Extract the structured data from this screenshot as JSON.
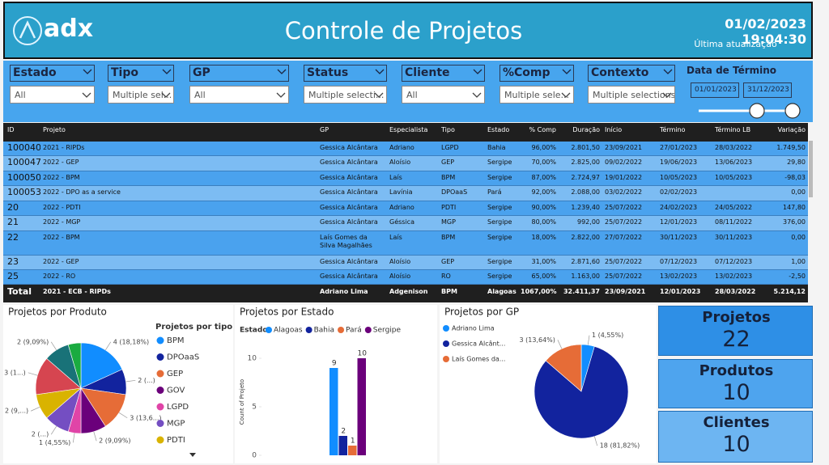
{
  "header": {
    "logo": "adx",
    "title": "Controle de Projetos",
    "updated": "01/02/2023 19:04:30",
    "updated_label": "Última atualização"
  },
  "filters": [
    {
      "label": "Estado",
      "value": "All"
    },
    {
      "label": "Tipo",
      "value": "Multiple sel..."
    },
    {
      "label": "GP",
      "value": "All"
    },
    {
      "label": "Status",
      "value": "Multiple selecti..."
    },
    {
      "label": "Cliente",
      "value": "All"
    },
    {
      "label": "%Comp",
      "value": "Multiple sele..."
    },
    {
      "label": "Contexto",
      "value": "Multiple selections"
    }
  ],
  "date_filter": {
    "label": "Data de Término",
    "start": "01/01/2023",
    "end": "31/12/2023"
  },
  "table": {
    "columns": [
      "ID",
      "Projeto",
      "GP",
      "Especialista",
      "Tipo",
      "Estado",
      "% Comp",
      "Duração",
      "Início",
      "Término",
      "Término LB",
      "Variação"
    ],
    "rows": [
      [
        "100040",
        "2021 - RIPDs",
        "Gessica Alcântara",
        "Adriano",
        "LGPD",
        "Bahia",
        "96,00%",
        "2.801,50",
        "23/09/2021",
        "27/01/2023",
        "28/03/2022",
        "1.749,50"
      ],
      [
        "100047",
        "2022 - GEP",
        "Gessica Alcântara",
        "Aloísio",
        "GEP",
        "Sergipe",
        "70,00%",
        "2.825,00",
        "09/02/2022",
        "19/06/2023",
        "13/06/2023",
        "29,80"
      ],
      [
        "100050",
        "2022 - BPM",
        "Gessica Alcântara",
        "Laís",
        "BPM",
        "Sergipe",
        "87,00%",
        "2.724,97",
        "19/01/2022",
        "10/05/2023",
        "10/05/2023",
        "-98,03"
      ],
      [
        "100053",
        "2022 - DPO as a service",
        "Gessica Alcântara",
        "Lavínia",
        "DPOaaS",
        "Pará",
        "92,00%",
        "2.088,00",
        "03/02/2022",
        "02/02/2023",
        null,
        "0,00"
      ],
      [
        "20",
        "2022 - PDTI",
        "Gessica Alcântara",
        "Adriano",
        "PDTI",
        "Sergipe",
        "90,00%",
        "1.239,40",
        "25/07/2022",
        "24/02/2023",
        "24/05/2022",
        "147,80"
      ],
      [
        "21",
        "2022 - MGP",
        "Gessica Alcântara",
        "Géssica",
        "MGP",
        "Sergipe",
        "80,00%",
        "992,00",
        "25/07/2022",
        "12/01/2023",
        "08/11/2022",
        "376,00"
      ],
      [
        "22",
        "2022 - BPM",
        "Laís Gomes da Silva Magalhães",
        "Laís",
        "BPM",
        "Sergipe",
        "18,00%",
        "2.822,00",
        "27/07/2022",
        "30/11/2023",
        "30/11/2023",
        "0,00"
      ],
      [
        "23",
        "2022 - GEP",
        "Gessica Alcântara",
        "Aloísio",
        "GEP",
        "Sergipe",
        "31,00%",
        "2.871,60",
        "25/07/2022",
        "07/12/2023",
        "07/12/2023",
        "1,00"
      ],
      [
        "25",
        "2022 - RO",
        "Gessica Alcântara",
        "Aloísio",
        "RO",
        "Sergipe",
        "65,00%",
        "1.163,00",
        "25/07/2022",
        "13/02/2023",
        "13/02/2023",
        "-2,50"
      ]
    ],
    "total": [
      "Total",
      "2021 - ECB - RIPDs",
      "Adriano Lima",
      "Adgenison",
      "BPM",
      "Alagoas",
      "1067,00%",
      "32.411,37",
      "23/09/2021",
      "12/01/2023",
      "28/03/2022",
      "5.214,12"
    ]
  },
  "chart_data": [
    {
      "type": "pie",
      "title": "Projetos por Produto",
      "legend_title": "Projetos por tipo",
      "categories": [
        "BPM",
        "DPOaaS",
        "GEP",
        "GOV",
        "LGPD",
        "MGP",
        "PDTI",
        null,
        null,
        null
      ],
      "values": [
        4,
        2,
        3,
        2,
        1,
        2,
        2,
        3,
        2,
        1
      ],
      "value_labels": [
        "4 (18,18%)",
        "2 (...)",
        "3 (13,6...)",
        "2 (9,09%)",
        "1 (4,55%)",
        "2 (...)",
        "2 (9,...)",
        "3 (1...)",
        "2 (9,09%)",
        null
      ],
      "colors": [
        "#118DFF",
        "#12239E",
        "#E66C37",
        "#6B007B",
        "#E044A7",
        "#744EC2",
        "#D9B300",
        "#D64550",
        "#197278",
        "#1AAB40"
      ]
    },
    {
      "type": "bar",
      "title": "Projetos por Estado",
      "legend_title": "Estado",
      "ylabel": "Count of Projeto",
      "series": [
        {
          "name": "Alagoas",
          "color": "#118DFF",
          "values": [
            9
          ]
        },
        {
          "name": "Bahia",
          "color": "#12239E",
          "values": [
            2
          ]
        },
        {
          "name": "Pará",
          "color": "#E66C37",
          "values": [
            1
          ]
        },
        {
          "name": "Sergipe",
          "color": "#6B007B",
          "values": [
            10
          ]
        }
      ],
      "ylim": [
        0,
        11
      ],
      "yticks": [
        0,
        5,
        10
      ]
    },
    {
      "type": "pie",
      "title": "Projetos por GP",
      "categories": [
        "Adriano Lima",
        "Gessica Alcânt...",
        "Laís Gomes da..."
      ],
      "values": [
        1,
        18,
        3
      ],
      "value_labels": [
        "1 (4,55%)",
        "18 (81,82%)",
        "3 (13,64%)"
      ],
      "colors": [
        "#118DFF",
        "#12239E",
        "#E66C37"
      ]
    }
  ],
  "cards": [
    {
      "label": "Projetos",
      "value": 22
    },
    {
      "label": "Produtos",
      "value": 10
    },
    {
      "label": "Clientes",
      "value": 10
    }
  ]
}
